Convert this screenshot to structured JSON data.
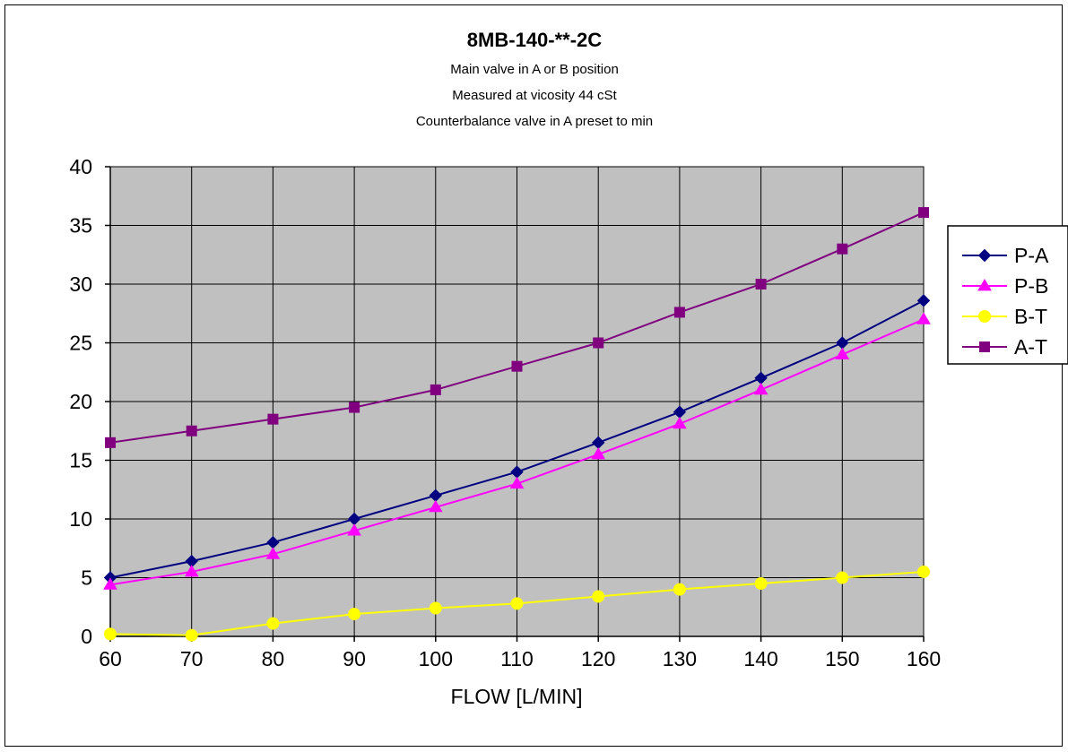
{
  "chart_data": {
    "type": "line",
    "title": "8MB-140-**-2C",
    "subtitle_lines": [
      "Main valve in A or B position",
      "Measured at vicosity 44 cSt",
      "Counterbalance valve in A preset to min"
    ],
    "xlabel": "FLOW  [L/MIN]",
    "ylabel": "",
    "xlim": [
      60,
      160
    ],
    "ylim": [
      0,
      40
    ],
    "x_ticks": [
      60,
      70,
      80,
      90,
      100,
      110,
      120,
      130,
      140,
      150,
      160
    ],
    "y_ticks": [
      0,
      5,
      10,
      15,
      20,
      25,
      30,
      35,
      40
    ],
    "grid": true,
    "plot_background": "#c0c0c0",
    "legend_position": "right",
    "x": [
      60,
      70,
      80,
      90,
      100,
      110,
      120,
      130,
      140,
      150,
      160
    ],
    "series": [
      {
        "name": "P-A",
        "color": "#000080",
        "marker": "diamond",
        "values": [
          5.0,
          6.4,
          8.0,
          10.0,
          12.0,
          14.0,
          16.5,
          19.1,
          22.0,
          25.0,
          28.6
        ]
      },
      {
        "name": "P-B",
        "color": "#ff00ff",
        "marker": "triangle",
        "values": [
          4.4,
          5.5,
          7.0,
          9.0,
          11.0,
          13.0,
          15.5,
          18.1,
          21.0,
          24.0,
          27.0
        ]
      },
      {
        "name": "B-T",
        "color": "#ffff00",
        "marker": "circle",
        "values": [
          0.2,
          0.1,
          1.1,
          1.9,
          2.4,
          2.8,
          3.4,
          4.0,
          4.5,
          5.0,
          5.5
        ]
      },
      {
        "name": "A-T",
        "color": "#800080",
        "marker": "square",
        "values": [
          16.5,
          17.5,
          18.5,
          19.5,
          21.0,
          23.0,
          25.0,
          27.6,
          30.0,
          33.0,
          36.1
        ]
      }
    ]
  }
}
